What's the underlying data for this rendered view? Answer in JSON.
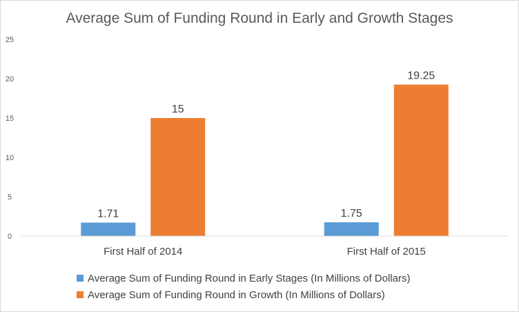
{
  "chart_data": {
    "type": "bar",
    "title": "Average Sum of Funding Round in Early and Growth Stages",
    "xlabel": "",
    "ylabel": "",
    "categories": [
      "First Half of 2014",
      "First Half of 2015"
    ],
    "ylim": [
      0,
      25
    ],
    "yticks": [
      0,
      5,
      10,
      15,
      20,
      25
    ],
    "grid": false,
    "legend_position": "bottom",
    "series": [
      {
        "name": "Average Sum of Funding Round in Early Stages (In Millions of Dollars)",
        "values": [
          1.71,
          1.75
        ],
        "labels": [
          "1.71",
          "1.75"
        ],
        "color": "#5b9bd5"
      },
      {
        "name": "Average Sum of Funding Round in Growth (In Millions of Dollars)",
        "values": [
          15,
          19.25
        ],
        "labels": [
          "15",
          "19.25"
        ],
        "color": "#ed7d31"
      }
    ]
  }
}
